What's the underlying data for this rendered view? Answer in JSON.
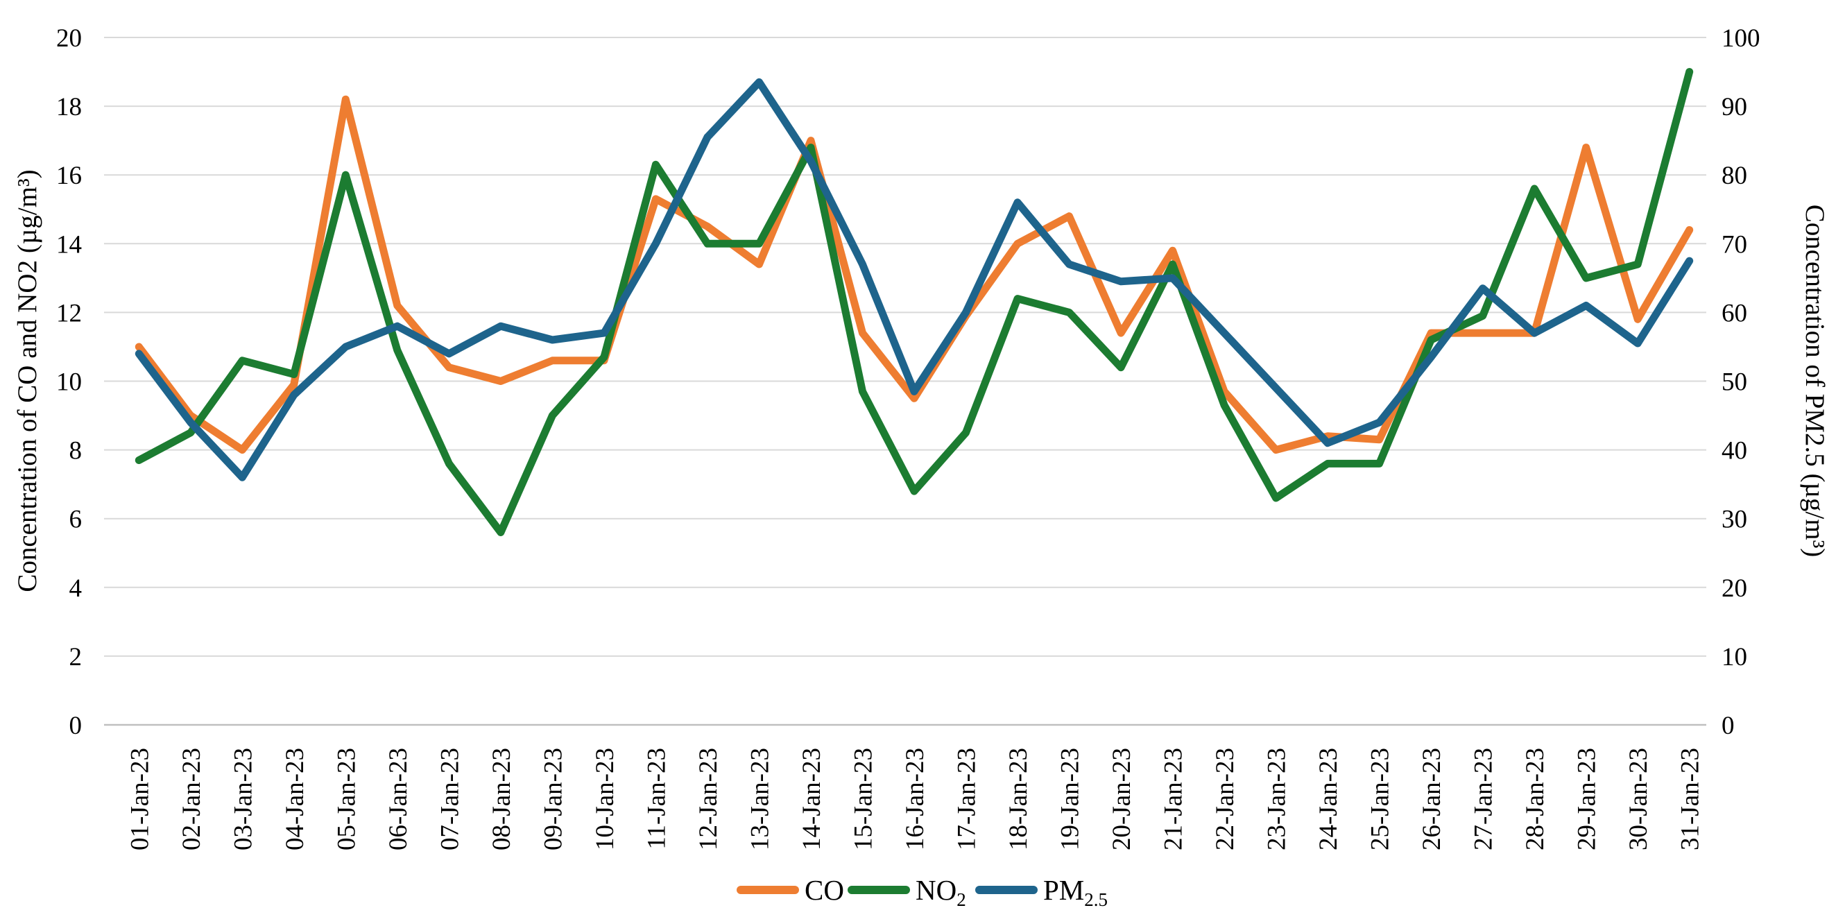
{
  "chart_data": {
    "type": "line",
    "title": "",
    "x": [
      "01-Jan-23",
      "02-Jan-23",
      "03-Jan-23",
      "04-Jan-23",
      "05-Jan-23",
      "06-Jan-23",
      "07-Jan-23",
      "08-Jan-23",
      "09-Jan-23",
      "10-Jan-23",
      "11-Jan-23",
      "12-Jan-23",
      "13-Jan-23",
      "14-Jan-23",
      "15-Jan-23",
      "16-Jan-23",
      "17-Jan-23",
      "18-Jan-23",
      "19-Jan-23",
      "20-Jan-23",
      "21-Jan-23",
      "22-Jan-23",
      "23-Jan-23",
      "24-Jan-23",
      "25-Jan-23",
      "26-Jan-23",
      "27-Jan-23",
      "28-Jan-23",
      "29-Jan-23",
      "30-Jan-23",
      "31-Jan-23"
    ],
    "series": [
      {
        "name": "CO",
        "name_subscript": "",
        "color": "#EE7D31",
        "axis": "left",
        "values": [
          11.0,
          9.0,
          8.0,
          9.9,
          18.2,
          12.2,
          10.4,
          10.0,
          10.6,
          10.6,
          15.3,
          14.5,
          13.4,
          17.0,
          11.4,
          9.5,
          11.9,
          14.0,
          14.8,
          11.4,
          13.8,
          9.7,
          8.0,
          8.4,
          8.3,
          11.4,
          11.4,
          11.4,
          16.8,
          11.8,
          14.4
        ]
      },
      {
        "name": "NO",
        "name_subscript": "2",
        "color": "#1C7C31",
        "axis": "left",
        "values": [
          7.7,
          8.5,
          10.6,
          10.2,
          16.0,
          10.9,
          7.6,
          5.6,
          9.0,
          10.7,
          16.3,
          14.0,
          14.0,
          16.8,
          9.7,
          6.8,
          8.5,
          12.4,
          12.0,
          10.4,
          13.4,
          9.3,
          6.6,
          7.6,
          7.6,
          11.2,
          11.9,
          15.6,
          13.0,
          13.4,
          19.0
        ]
      },
      {
        "name": "PM",
        "name_subscript": "2.5",
        "color": "#1E648C",
        "axis": "right",
        "values": [
          54,
          44,
          36,
          48,
          55,
          58,
          54,
          58,
          56,
          57,
          70,
          85.5,
          93.5,
          82,
          67,
          48.5,
          60,
          76,
          67,
          64.5,
          65,
          57,
          49,
          41,
          44,
          53.5,
          63.5,
          57,
          61,
          55.5,
          67.5
        ]
      }
    ],
    "left_axis": {
      "title": "Concentration of CO and NO2 (µg/m³)",
      "min": 0,
      "max": 20,
      "step": 2,
      "ticks": [
        0,
        2,
        4,
        6,
        8,
        10,
        12,
        14,
        16,
        18,
        20
      ]
    },
    "right_axis": {
      "title": "Concentration of PM2.5 (µg/m³)",
      "min": 0,
      "max": 100,
      "step": 10,
      "ticks": [
        0,
        10,
        20,
        30,
        40,
        50,
        60,
        70,
        80,
        90,
        100
      ]
    },
    "grid": true,
    "legend_position": "bottom"
  },
  "colors": {
    "gridline": "#D9D9D9",
    "axis_line": "#BFBFBF",
    "text": "#000000",
    "background": "#FFFFFF"
  }
}
